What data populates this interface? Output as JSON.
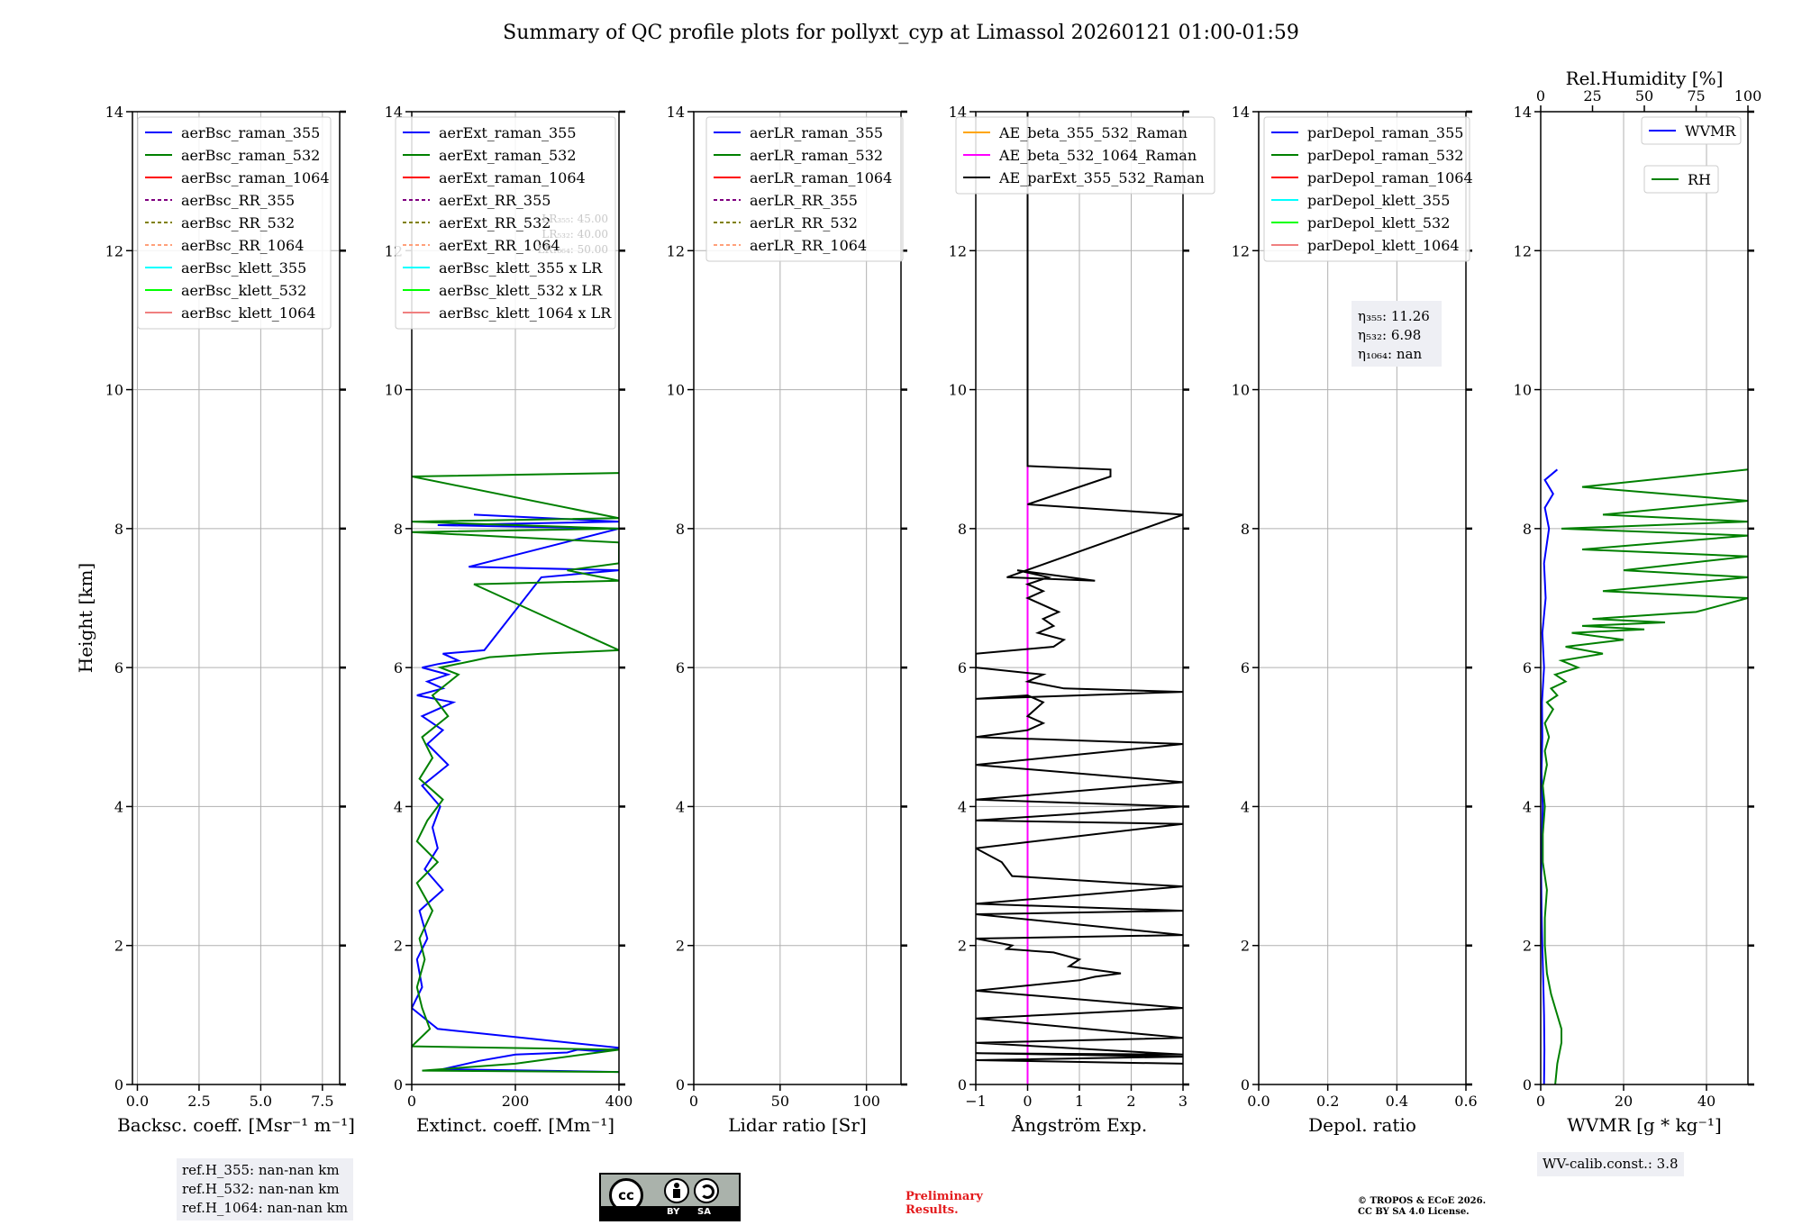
{
  "chart_data": {
    "type": "line",
    "title": "Summary of QC profile plots for pollyxt_cyp at Limassol 20260121 01:00-01:59",
    "ylabel": "Height [km]",
    "ylim": [
      0,
      14
    ],
    "yticks": [
      "0",
      "2",
      "4",
      "6",
      "8",
      "10",
      "12",
      "14"
    ],
    "grid": true,
    "panels": [
      {
        "id": "bsc",
        "xlabel": "Backsc. coeff. [Msr⁻¹ m⁻¹]",
        "xlim": [
          -0.2,
          8.2
        ],
        "xticks": [
          0,
          2.5,
          5,
          7.5
        ],
        "xticklabels": [
          "0.0",
          "2.5",
          "5.0",
          "7.5"
        ],
        "legend_position": "upper-left",
        "legend": [
          {
            "label": "aerBsc_raman_355",
            "color": "#0000ff",
            "dash": false
          },
          {
            "label": "aerBsc_raman_532",
            "color": "#008000",
            "dash": false
          },
          {
            "label": "aerBsc_raman_1064",
            "color": "#ff0000",
            "dash": false
          },
          {
            "label": "aerBsc_RR_355",
            "color": "#800080",
            "dash": true
          },
          {
            "label": "aerBsc_RR_532",
            "color": "#808000",
            "dash": true
          },
          {
            "label": "aerBsc_RR_1064",
            "color": "#ffa07a",
            "dash": true
          },
          {
            "label": "aerBsc_klett_355",
            "color": "#00ffff",
            "dash": false
          },
          {
            "label": "aerBsc_klett_532",
            "color": "#00ff00",
            "dash": false
          },
          {
            "label": "aerBsc_klett_1064",
            "color": "#f08080",
            "dash": false
          }
        ],
        "series": []
      },
      {
        "id": "ext",
        "xlabel": "Extinct. coeff. [Mm⁻¹]",
        "xlim": [
          0,
          400
        ],
        "xticks": [
          0,
          200,
          400
        ],
        "xticklabels": [
          "0",
          "200",
          "400"
        ],
        "legend_position": "upper-left",
        "legend": [
          {
            "label": "aerExt_raman_355",
            "color": "#0000ff",
            "dash": false
          },
          {
            "label": "aerExt_raman_532",
            "color": "#008000",
            "dash": false
          },
          {
            "label": "aerExt_raman_1064",
            "color": "#ff0000",
            "dash": false
          },
          {
            "label": "aerExt_RR_355",
            "color": "#800080",
            "dash": true
          },
          {
            "label": "aerExt_RR_532",
            "color": "#808000",
            "dash": true
          },
          {
            "label": "aerExt_RR_1064",
            "color": "#ffa07a",
            "dash": true
          },
          {
            "label": "aerBsc_klett_355 x LR",
            "color": "#00ffff",
            "dash": false
          },
          {
            "label": "aerBsc_klett_532 x LR",
            "color": "#00ff00",
            "dash": false
          },
          {
            "label": "aerBsc_klett_1064 x LR",
            "color": "#f08080",
            "dash": false
          }
        ],
        "annotations": [
          "LR₃₅₅: 45.00",
          "LR₅₃₂: 40.00",
          "LR₁₀₆₄: 50.00"
        ],
        "series": [
          {
            "name": "aerExt_raman_355",
            "color": "#0000ff",
            "x": [
              400,
              60,
              130,
              200,
              300,
              320,
              360,
              410,
              50,
              0,
              20,
              10,
              30,
              15,
              60,
              25,
              50,
              40,
              55,
              20,
              70,
              30,
              60,
              20,
              80,
              10,
              60,
              30,
              70,
              20,
              50,
              90,
              60,
              140,
              250,
              400,
              110,
              400,
              50,
              400,
              120
            ],
            "y": [
              0.18,
              0.22,
              0.34,
              0.43,
              0.46,
              0.5,
              0.48,
              0.52,
              0.8,
              1.1,
              1.4,
              1.8,
              2.1,
              2.5,
              2.8,
              3.1,
              3.4,
              3.7,
              4.0,
              4.3,
              4.6,
              4.9,
              5.1,
              5.3,
              5.5,
              5.6,
              5.7,
              5.8,
              5.9,
              6.0,
              6.05,
              6.1,
              6.2,
              6.25,
              7.3,
              7.4,
              7.45,
              8.0,
              8.05,
              8.1,
              8.2
            ]
          },
          {
            "name": "aerExt_raman_532",
            "color": "#008000",
            "x": [
              400,
              20,
              200,
              400,
              0,
              35,
              20,
              10,
              25,
              15,
              40,
              10,
              50,
              10,
              30,
              60,
              15,
              40,
              20,
              70,
              40,
              90,
              55,
              120,
              150,
              250,
              400,
              120,
              400,
              300,
              400,
              400,
              0,
              400,
              0,
              400,
              0,
              400
            ],
            "y": [
              0.18,
              0.2,
              0.3,
              0.5,
              0.55,
              0.8,
              1.1,
              1.4,
              1.8,
              2.1,
              2.5,
              2.9,
              3.2,
              3.5,
              3.8,
              4.1,
              4.4,
              4.7,
              5.0,
              5.3,
              5.6,
              5.9,
              6.0,
              6.1,
              6.15,
              6.2,
              6.25,
              7.2,
              7.25,
              7.4,
              7.5,
              7.8,
              7.95,
              8.0,
              8.1,
              8.15,
              8.75,
              8.8
            ]
          }
        ]
      },
      {
        "id": "lr",
        "xlabel": "Lidar ratio [Sr]",
        "xlim": [
          0,
          120
        ],
        "xticks": [
          0,
          50,
          100
        ],
        "xticklabels": [
          "0",
          "50",
          "100"
        ],
        "legend_position": "upper-left",
        "legend": [
          {
            "label": "aerLR_raman_355",
            "color": "#0000ff",
            "dash": false
          },
          {
            "label": "aerLR_raman_532",
            "color": "#008000",
            "dash": false
          },
          {
            "label": "aerLR_raman_1064",
            "color": "#ff0000",
            "dash": false
          },
          {
            "label": "aerLR_RR_355",
            "color": "#800080",
            "dash": true
          },
          {
            "label": "aerLR_RR_532",
            "color": "#808000",
            "dash": true
          },
          {
            "label": "aerLR_RR_1064",
            "color": "#ffa07a",
            "dash": true
          }
        ],
        "series": []
      },
      {
        "id": "ae",
        "xlabel": "Ångström Exp.",
        "xlim": [
          -1,
          3
        ],
        "xticks": [
          -1,
          0,
          1,
          2,
          3
        ],
        "xticklabels": [
          "−1",
          "0",
          "1",
          "2",
          "3"
        ],
        "legend_position": "upper-left",
        "legend": [
          {
            "label": "AE_beta_355_532_Raman",
            "color": "#ffa500",
            "dash": false
          },
          {
            "label": "AE_beta_532_1064_Raman",
            "color": "#ff00ff",
            "dash": false
          },
          {
            "label": "AE_parExt_355_532_Raman",
            "color": "#000000",
            "dash": false
          }
        ],
        "series": [
          {
            "name": "AE_beta_532_1064_Raman",
            "color": "#ff00ff",
            "x": [
              0,
              0
            ],
            "y": [
              0.0,
              8.9
            ]
          },
          {
            "name": "AE_parExt_355_532_Raman",
            "color": "#000000",
            "x": [
              3,
              -1,
              3,
              -1,
              3,
              -1,
              3,
              -1,
              3,
              -1,
              1.0,
              1.3,
              1.8,
              0.8,
              1.0,
              0.5,
              -0.4,
              -0.3,
              -1,
              3,
              -1,
              3,
              -1,
              3,
              1.8,
              -0.3,
              -0.5,
              -1,
              3,
              -1,
              3,
              -1,
              3,
              -1,
              3,
              -1,
              0.0,
              0.3,
              0.0,
              0.3,
              0.0,
              -1,
              3,
              0.7,
              0.0,
              0.3,
              -1,
              -1,
              0.5,
              0.7,
              0.2,
              0.5,
              0.3,
              0.6,
              0.0,
              0.3,
              0.0,
              0.4,
              -0.2,
              1.3,
              -0.4,
              3,
              0.0,
              1.6,
              1.6,
              0.0,
              0.0
            ],
            "y": [
              0.3,
              0.35,
              0.4,
              0.45,
              0.43,
              0.6,
              0.67,
              0.95,
              1.1,
              1.35,
              1.5,
              1.55,
              1.6,
              1.7,
              1.8,
              1.9,
              1.95,
              2.0,
              2.1,
              2.15,
              2.45,
              2.5,
              2.6,
              2.85,
              2.9,
              3.0,
              3.2,
              3.4,
              3.75,
              3.8,
              4.0,
              4.1,
              4.35,
              4.6,
              4.9,
              5.0,
              5.1,
              5.2,
              5.3,
              5.5,
              5.6,
              5.55,
              5.65,
              5.7,
              5.8,
              5.9,
              6.0,
              6.2,
              6.3,
              6.4,
              6.5,
              6.6,
              6.7,
              6.8,
              7.0,
              7.1,
              7.2,
              7.3,
              7.4,
              7.25,
              7.3,
              8.2,
              8.35,
              8.75,
              8.85,
              8.9,
              14
            ]
          }
        ]
      },
      {
        "id": "depol",
        "xlabel": "Depol. ratio",
        "xlim": [
          0,
          0.6
        ],
        "xticks": [
          0,
          0.2,
          0.4,
          0.6
        ],
        "xticklabels": [
          "0.0",
          "0.2",
          "0.4",
          "0.6"
        ],
        "legend_position": "upper-left",
        "legend": [
          {
            "label": "parDepol_raman_355",
            "color": "#0000ff",
            "dash": false
          },
          {
            "label": "parDepol_raman_532",
            "color": "#008000",
            "dash": false
          },
          {
            "label": "parDepol_raman_1064",
            "color": "#ff0000",
            "dash": false
          },
          {
            "label": "parDepol_klett_355",
            "color": "#00ffff",
            "dash": false
          },
          {
            "label": "parDepol_klett_532",
            "color": "#00ff00",
            "dash": false
          },
          {
            "label": "parDepol_klett_1064",
            "color": "#f08080",
            "dash": false
          }
        ],
        "annotation_lines": [
          "η₃₅₅: 11.26",
          "η₅₃₂: 6.98",
          "η₁₀₆₄: nan"
        ],
        "series": []
      },
      {
        "id": "wv",
        "xlabel": "WVMR [g * kg⁻¹]",
        "xlim": [
          0,
          50
        ],
        "xticks": [
          0,
          20,
          40
        ],
        "xticklabels": [
          "0",
          "20",
          "40"
        ],
        "top_axis": {
          "label": "Rel.Humidity [%]",
          "lim": [
            0,
            100
          ],
          "ticks": [
            0,
            25,
            50,
            75,
            100
          ]
        },
        "legend": [
          {
            "label": "WVMR",
            "color": "#0000ff",
            "dash": false,
            "position": "upper-right"
          },
          {
            "label": "RH",
            "color": "#008000",
            "dash": false,
            "position": "upper-right-lower"
          }
        ],
        "series": [
          {
            "name": "WVMR",
            "color": "#0000ff",
            "axis": "bottom",
            "x": [
              0.8,
              0.9,
              0.8,
              0.6,
              0.4,
              0.2,
              0.1,
              0.3,
              0.5,
              0.2,
              0.4,
              0.3,
              0.8,
              0.4,
              1.2,
              0.8,
              2.0,
              1.0,
              3.0,
              1.0,
              4.0
            ],
            "y": [
              0.0,
              0.5,
              1.0,
              1.5,
              2.0,
              2.5,
              3.0,
              3.5,
              4.0,
              4.5,
              5.0,
              5.5,
              6.0,
              6.5,
              7.0,
              7.5,
              8.0,
              8.3,
              8.5,
              8.7,
              8.85
            ]
          },
          {
            "name": "RH",
            "color": "#008000",
            "axis": "top",
            "x": [
              7,
              8,
              10,
              10,
              8,
              5,
              3,
              2,
              2,
              3,
              1,
              1,
              2,
              1,
              3,
              2,
              4,
              2,
              6,
              3,
              8,
              5,
              12,
              7,
              18,
              10,
              30,
              12,
              40,
              15,
              50,
              20,
              60,
              25,
              75,
              100,
              30,
              100,
              40,
              100,
              20,
              100,
              10,
              100,
              30,
              100,
              20,
              100
            ],
            "y": [
              0.0,
              0.3,
              0.6,
              0.8,
              1.0,
              1.3,
              1.6,
              2.0,
              2.4,
              2.8,
              3.2,
              3.6,
              4.0,
              4.3,
              4.6,
              4.8,
              5.0,
              5.2,
              5.4,
              5.5,
              5.6,
              5.7,
              5.8,
              5.9,
              6.0,
              6.1,
              6.2,
              6.3,
              6.4,
              6.5,
              6.55,
              6.6,
              6.65,
              6.7,
              6.8,
              7.0,
              7.1,
              7.3,
              7.4,
              7.6,
              7.7,
              7.9,
              8.0,
              8.1,
              8.2,
              8.4,
              8.6,
              8.85
            ]
          }
        ]
      }
    ]
  },
  "footer": {
    "refh_lines": [
      "ref.H_355: nan-nan km",
      "ref.H_532: nan-nan km",
      "ref.H_1064: nan-nan km"
    ],
    "preliminary_line1": "Preliminary",
    "preliminary_line2": "Results.",
    "copyright_line1": "© TROPOS & ECoE 2026.",
    "copyright_line2": "CC BY SA 4.0 License.",
    "wv_calib": "WV-calib.const.: 3.8",
    "cc_badge": {
      "cc": "cc",
      "by": "BY",
      "sa": "SA"
    }
  }
}
